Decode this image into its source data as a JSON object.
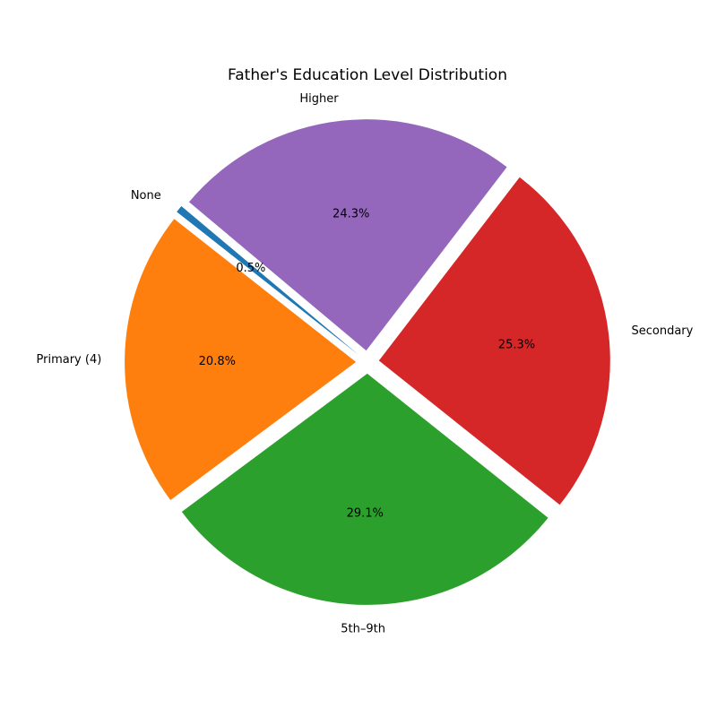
{
  "chart_data": {
    "type": "pie",
    "title": "Father's Education Level Distribution",
    "slices": [
      {
        "label": "None",
        "value": 0.5,
        "pct_label": "0.5%",
        "color": "#1f77b4",
        "explode": true
      },
      {
        "label": "Primary (4)",
        "value": 20.8,
        "pct_label": "20.8%",
        "color": "#ff7f0e",
        "explode": true
      },
      {
        "label": "5th–9th",
        "value": 29.1,
        "pct_label": "29.1%",
        "color": "#2ca02c",
        "explode": true
      },
      {
        "label": "Secondary",
        "value": 25.3,
        "pct_label": "25.3%",
        "color": "#d62728",
        "explode": true
      },
      {
        "label": "Higher",
        "value": 24.3,
        "pct_label": "24.3%",
        "color": "#9467bd",
        "explode": true
      }
    ],
    "start_angle_deg": 140,
    "direction": "counterclockwise",
    "legend": "none"
  }
}
